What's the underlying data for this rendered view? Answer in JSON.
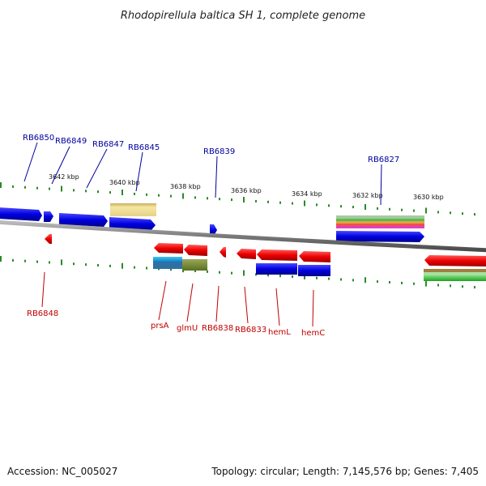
{
  "title": "Rhodopirellula baltica SH 1, complete genome",
  "footer": {
    "accession": "Accession: NC_005027",
    "summary": "Topology: circular; Length: 7,145,576 bp; Genes: 7,405"
  },
  "colors": {
    "forward_label": "#00009c",
    "reverse_label": "#c00000",
    "backbone": "#808080",
    "tick": "#2a8a2a"
  },
  "scale_labels": [
    "3642 kbp",
    "3640 kbp",
    "3638 kbp",
    "3636 kbp",
    "3634 kbp",
    "3632 kbp",
    "3630 kbp"
  ],
  "top_gene_labels": [
    "RB6850",
    "RB6849",
    "RB6847",
    "RB6845",
    "RB6839",
    "RB6827"
  ],
  "bottom_gene_labels": [
    "RB6848",
    "prsA",
    "glmU",
    "RB6838",
    "RB6833",
    "hemL",
    "hemC"
  ]
}
